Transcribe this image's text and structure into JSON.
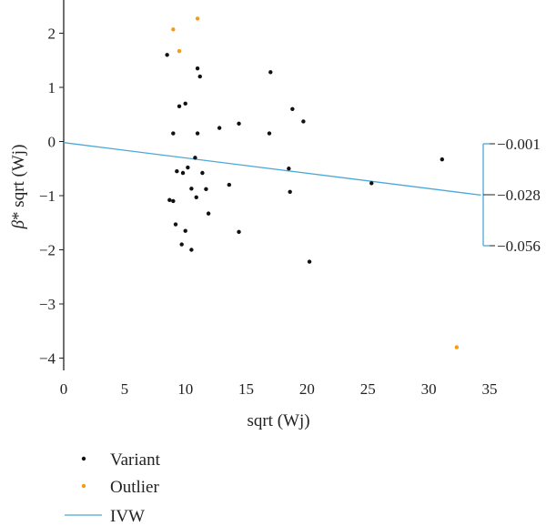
{
  "chart_data": {
    "type": "scatter",
    "xlabel": "sqrt (Wj)",
    "ylabel_beta": "β",
    "ylabel_rest": "* sqrt (Wj)",
    "xlim": [
      0,
      35
    ],
    "ylim": [
      -4.2,
      2.6
    ],
    "x_ticks": [
      "0",
      "5",
      "10",
      "15",
      "20",
      "25",
      "30",
      "35"
    ],
    "y_ticks": [
      "2",
      "1",
      "0",
      "−1",
      "−2",
      "−3",
      "−4"
    ],
    "series": [
      {
        "name": "Variant",
        "color": "#111111",
        "points": [
          [
            8.5,
            1.6
          ],
          [
            9.0,
            0.15
          ],
          [
            9.5,
            0.65
          ],
          [
            10.0,
            0.7
          ],
          [
            11.0,
            1.35
          ],
          [
            11.2,
            1.2
          ],
          [
            11.0,
            0.15
          ],
          [
            12.8,
            0.25
          ],
          [
            14.4,
            0.33
          ],
          [
            17.0,
            1.28
          ],
          [
            16.9,
            0.15
          ],
          [
            18.8,
            0.6
          ],
          [
            19.7,
            0.37
          ],
          [
            9.3,
            -0.55
          ],
          [
            9.8,
            -0.58
          ],
          [
            10.2,
            -0.48
          ],
          [
            10.8,
            -0.3
          ],
          [
            11.4,
            -0.58
          ],
          [
            8.7,
            -1.08
          ],
          [
            9.0,
            -1.1
          ],
          [
            10.5,
            -0.87
          ],
          [
            10.9,
            -1.03
          ],
          [
            11.7,
            -0.88
          ],
          [
            13.6,
            -0.8
          ],
          [
            18.5,
            -0.5
          ],
          [
            18.6,
            -0.93
          ],
          [
            9.2,
            -1.53
          ],
          [
            10.0,
            -1.65
          ],
          [
            9.7,
            -1.9
          ],
          [
            10.5,
            -2.0
          ],
          [
            11.9,
            -1.33
          ],
          [
            14.4,
            -1.67
          ],
          [
            20.2,
            -2.22
          ],
          [
            25.3,
            -0.77
          ],
          [
            31.1,
            -0.33
          ]
        ]
      },
      {
        "name": "Outlier",
        "color": "#f39c12",
        "points": [
          [
            9.0,
            2.07
          ],
          [
            11.0,
            2.27
          ],
          [
            9.5,
            1.67
          ],
          [
            32.3,
            -3.8
          ]
        ]
      }
    ],
    "ivw_line": {
      "name": "IVW",
      "color": "#4aa8d8",
      "x": [
        0,
        34.3
      ],
      "y": [
        -0.02,
        -0.99
      ]
    },
    "ci_labels": [
      "−0.001",
      "−0.028",
      "−0.056"
    ],
    "legend": [
      "Variant",
      "Outlier",
      "IVW"
    ]
  }
}
